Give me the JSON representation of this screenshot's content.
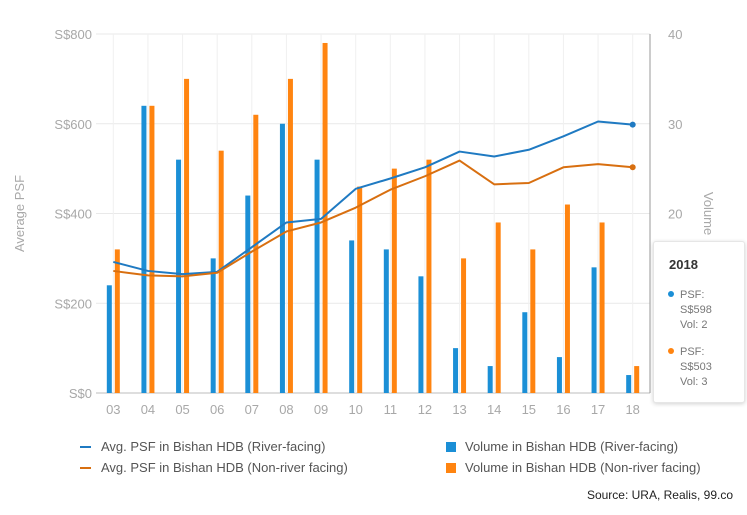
{
  "chart_data": {
    "type": "bar",
    "categories": [
      "03",
      "04",
      "05",
      "06",
      "07",
      "08",
      "09",
      "10",
      "11",
      "12",
      "13",
      "14",
      "15",
      "16",
      "17",
      "18"
    ],
    "y_left": {
      "label": "Average PSF",
      "ticks": [
        "S$0",
        "S$200",
        "S$400",
        "S$600",
        "S$800"
      ],
      "range": [
        0,
        800
      ]
    },
    "y_right": {
      "label": "Volume",
      "ticks": [
        "0",
        "10",
        "20",
        "30",
        "40"
      ],
      "range": [
        0,
        40
      ]
    },
    "series": [
      {
        "name": "Avg. PSF in Bishan HDB (River-facing)",
        "kind": "line",
        "axis": "left",
        "color": "#1f7ac2",
        "values": [
          292,
          272,
          265,
          270,
          325,
          380,
          388,
          455,
          478,
          503,
          538,
          527,
          542,
          572,
          605,
          598
        ]
      },
      {
        "name": "Avg. PSF in Bishan HDB (Non-river facing)",
        "kind": "line",
        "axis": "left",
        "color": "#d86f10",
        "values": [
          272,
          262,
          260,
          268,
          315,
          360,
          380,
          413,
          453,
          483,
          518,
          465,
          468,
          503,
          510,
          503
        ]
      },
      {
        "name": "Volume in Bishan HDB (River-facing)",
        "kind": "bar",
        "axis": "right",
        "color": "#1b8fd6",
        "values": [
          12,
          32,
          26,
          15,
          22,
          30,
          26,
          17,
          16,
          13,
          5,
          3,
          9,
          4,
          14,
          2
        ]
      },
      {
        "name": "Volume in Bishan HDB (Non-river facing)",
        "kind": "bar",
        "axis": "right",
        "color": "#ff8410",
        "values": [
          16,
          32,
          35,
          27,
          31,
          35,
          39,
          23,
          25,
          26,
          15,
          19,
          16,
          21,
          19,
          3
        ]
      }
    ]
  },
  "tooltip": {
    "year": "2018",
    "river": {
      "psf_label": "PSF:",
      "psf_value": "S$598",
      "vol": "Vol: 2"
    },
    "nonriver": {
      "psf_label": "PSF:",
      "psf_value": "S$503",
      "vol": "Vol: 3"
    }
  },
  "legend": {
    "river_line": "Avg. PSF in Bishan HDB (River-facing)",
    "nonriver_line": "Avg. PSF in Bishan HDB (Non-river facing)",
    "river_bar": "Volume in Bishan HDB (River-facing)",
    "nonriver_bar": "Volume in Bishan HDB (Non-river facing)"
  },
  "source": "Source: URA, Realis, 99.co"
}
